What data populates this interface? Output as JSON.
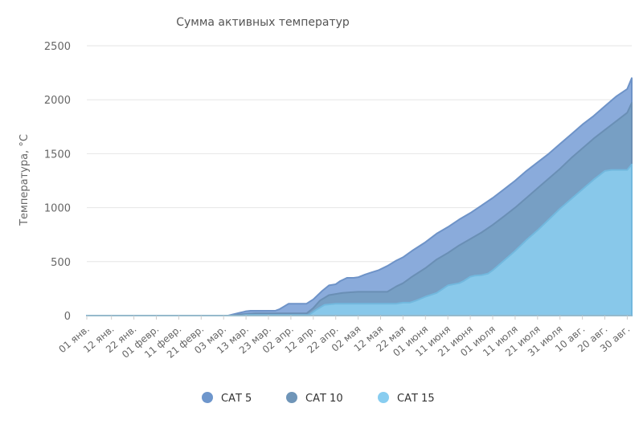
{
  "chart_data": {
    "type": "area",
    "title": "Сумма активных температур",
    "ylabel": "Температура, °C",
    "xlabel": "",
    "ylim": [
      0,
      2500
    ],
    "yticks": [
      0,
      500,
      1000,
      1500,
      2000,
      2500
    ],
    "grid": true,
    "legend_position": "bottom-center",
    "x_labels": [
      "01 янв.",
      "12 янв.",
      "22 янв.",
      "01 февр.",
      "11 февр.",
      "21 февр.",
      "03 мар.",
      "13 мар.",
      "23 мар.",
      "02 апр.",
      "12 апр.",
      "22 апр.",
      "02 мая",
      "12 мая",
      "22 мая",
      "01 июня",
      "11 июня",
      "21 июня",
      "01 июля",
      "11 июля",
      "21 июля",
      "31 июля",
      "10 авг.",
      "20 авг.",
      "30 авг."
    ],
    "x_label_days": [
      0,
      11,
      21,
      31,
      41,
      51,
      61,
      71,
      81,
      91,
      101,
      111,
      121,
      131,
      141,
      151,
      161,
      171,
      181,
      191,
      201,
      211,
      221,
      231,
      241
    ],
    "series": [
      {
        "name": "САТ 5",
        "color": "#8aabdb",
        "x": [
          0,
          63,
          66,
          68,
          70,
          71,
          73,
          75,
          77,
          79,
          81,
          84,
          86,
          88,
          90,
          95,
          98,
          101,
          105,
          108,
          111,
          113,
          116,
          119,
          121,
          124,
          127,
          130,
          134,
          138,
          141,
          145,
          151,
          156,
          161,
          166,
          171,
          176,
          181,
          186,
          191,
          196,
          201,
          206,
          211,
          216,
          221,
          226,
          231,
          236,
          241,
          243
        ],
        "values": [
          0,
          0,
          15,
          25,
          35,
          40,
          45,
          45,
          45,
          45,
          45,
          45,
          60,
          85,
          110,
          110,
          110,
          150,
          230,
          280,
          290,
          320,
          350,
          350,
          355,
          380,
          400,
          420,
          460,
          510,
          540,
          600,
          680,
          760,
          820,
          890,
          950,
          1020,
          1090,
          1170,
          1250,
          1340,
          1420,
          1500,
          1590,
          1680,
          1770,
          1850,
          1940,
          2030,
          2100,
          2200
        ]
      },
      {
        "name": "САТ 10",
        "color": "#779fc4",
        "x": [
          0,
          65,
          68,
          71,
          75,
          79,
          81,
          84,
          87,
          90,
          95,
          98,
          101,
          104,
          108,
          111,
          114,
          117,
          121,
          124,
          129,
          134,
          138,
          141,
          145,
          151,
          156,
          161,
          166,
          171,
          176,
          181,
          186,
          191,
          196,
          201,
          206,
          211,
          216,
          221,
          226,
          231,
          236,
          241,
          243
        ],
        "values": [
          0,
          0,
          10,
          15,
          20,
          20,
          20,
          20,
          20,
          20,
          20,
          20,
          70,
          140,
          190,
          200,
          210,
          215,
          220,
          220,
          220,
          220,
          270,
          300,
          360,
          440,
          520,
          580,
          650,
          710,
          770,
          840,
          920,
          1000,
          1090,
          1180,
          1270,
          1360,
          1460,
          1550,
          1640,
          1720,
          1800,
          1880,
          1970
        ]
      },
      {
        "name": "САТ 15",
        "color": "#88c8ea",
        "x": [
          0,
          69,
          71,
          81,
          99,
          102,
          106,
          111,
          121,
          131,
          138,
          141,
          144,
          147,
          151,
          156,
          161,
          166,
          168,
          171,
          173,
          176,
          179,
          181,
          186,
          191,
          196,
          201,
          206,
          211,
          216,
          221,
          226,
          231,
          234,
          237,
          241,
          243
        ],
        "values": [
          0,
          0,
          5,
          5,
          5,
          50,
          100,
          110,
          110,
          110,
          110,
          120,
          120,
          140,
          175,
          210,
          280,
          300,
          320,
          360,
          370,
          375,
          390,
          420,
          510,
          600,
          700,
          790,
          890,
          990,
          1080,
          1170,
          1260,
          1340,
          1350,
          1350,
          1350,
          1400
        ]
      }
    ]
  }
}
